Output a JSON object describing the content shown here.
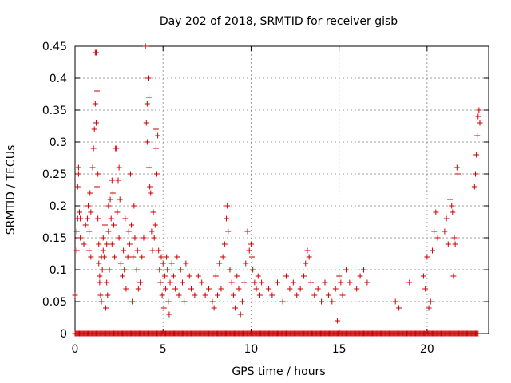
{
  "chart_data": {
    "type": "scatter",
    "title": "Day 202 of 2018, SRMTID for receiver gisb",
    "xlabel": "GPS time / hours",
    "ylabel": "SRMTID / TECUs",
    "xlim": [
      0,
      23.5
    ],
    "ylim": [
      0,
      0.45
    ],
    "x_ticks": [
      0,
      5,
      10,
      15,
      20
    ],
    "x_tick_labels": [
      "0",
      "5",
      "10",
      "15",
      "20"
    ],
    "y_ticks": [
      0,
      0.05,
      0.1,
      0.15,
      0.2,
      0.25,
      0.3,
      0.35,
      0.4,
      0.45
    ],
    "y_tick_labels": [
      "0",
      "0.05",
      "0.1",
      "0.15",
      "0.2",
      "0.25",
      "0.3",
      "0.35",
      "0.4",
      "0.45"
    ],
    "grid": true,
    "marker": "+",
    "series_color": "#cc0000",
    "series": [
      {
        "name": "SRMTID",
        "zero_baseline_x": [
          0,
          22.9
        ],
        "points": [
          [
            0.0,
            0.06
          ],
          [
            0.1,
            0.13
          ],
          [
            0.1,
            0.16
          ],
          [
            0.15,
            0.18
          ],
          [
            0.15,
            0.23
          ],
          [
            0.2,
            0.25
          ],
          [
            0.2,
            0.26
          ],
          [
            0.25,
            0.19
          ],
          [
            0.3,
            0.15
          ],
          [
            0.3,
            0.18
          ],
          [
            0.5,
            0.14
          ],
          [
            0.6,
            0.17
          ],
          [
            0.7,
            0.18
          ],
          [
            0.75,
            0.2
          ],
          [
            0.8,
            0.16
          ],
          [
            0.8,
            0.13
          ],
          [
            0.85,
            0.22
          ],
          [
            0.9,
            0.19
          ],
          [
            0.9,
            0.12
          ],
          [
            1.0,
            0.26
          ],
          [
            1.05,
            0.29
          ],
          [
            1.1,
            0.32
          ],
          [
            1.15,
            0.36
          ],
          [
            1.15,
            0.44
          ],
          [
            1.2,
            0.44
          ],
          [
            1.2,
            0.33
          ],
          [
            1.25,
            0.38
          ],
          [
            1.25,
            0.23
          ],
          [
            1.3,
            0.25
          ],
          [
            1.3,
            0.18
          ],
          [
            1.35,
            0.14
          ],
          [
            1.35,
            0.11
          ],
          [
            1.4,
            0.09
          ],
          [
            1.4,
            0.08
          ],
          [
            1.45,
            0.06
          ],
          [
            1.5,
            0.12
          ],
          [
            1.5,
            0.05
          ],
          [
            1.55,
            0.1
          ],
          [
            1.6,
            0.13
          ],
          [
            1.6,
            0.15
          ],
          [
            1.65,
            0.12
          ],
          [
            1.7,
            0.17
          ],
          [
            1.7,
            0.1
          ],
          [
            1.75,
            0.04
          ],
          [
            1.8,
            0.14
          ],
          [
            1.8,
            0.08
          ],
          [
            1.85,
            0.06
          ],
          [
            1.9,
            0.2
          ],
          [
            1.9,
            0.16
          ],
          [
            1.95,
            0.1
          ],
          [
            2.0,
            0.21
          ],
          [
            2.05,
            0.18
          ],
          [
            2.1,
            0.24
          ],
          [
            2.1,
            0.14
          ],
          [
            2.15,
            0.22
          ],
          [
            2.2,
            0.17
          ],
          [
            2.25,
            0.12
          ],
          [
            2.3,
            0.29
          ],
          [
            2.35,
            0.29
          ],
          [
            2.4,
            0.19
          ],
          [
            2.45,
            0.24
          ],
          [
            2.5,
            0.26
          ],
          [
            2.5,
            0.15
          ],
          [
            2.55,
            0.21
          ],
          [
            2.6,
            0.11
          ],
          [
            2.7,
            0.09
          ],
          [
            2.75,
            0.13
          ],
          [
            2.8,
            0.1
          ],
          [
            2.85,
            0.18
          ],
          [
            2.9,
            0.07
          ],
          [
            3.0,
            0.12
          ],
          [
            3.05,
            0.16
          ],
          [
            3.1,
            0.14
          ],
          [
            3.15,
            0.25
          ],
          [
            3.2,
            0.17
          ],
          [
            3.25,
            0.05
          ],
          [
            3.3,
            0.12
          ],
          [
            3.35,
            0.2
          ],
          [
            3.4,
            0.15
          ],
          [
            3.5,
            0.1
          ],
          [
            3.55,
            0.13
          ],
          [
            3.6,
            0.07
          ],
          [
            3.7,
            0.08
          ],
          [
            3.8,
            0.12
          ],
          [
            3.9,
            0.15
          ],
          [
            4.0,
            0.45
          ],
          [
            4.05,
            0.33
          ],
          [
            4.1,
            0.36
          ],
          [
            4.1,
            0.3
          ],
          [
            4.15,
            0.4
          ],
          [
            4.2,
            0.37
          ],
          [
            4.2,
            0.26
          ],
          [
            4.25,
            0.23
          ],
          [
            4.3,
            0.22
          ],
          [
            4.35,
            0.16
          ],
          [
            4.4,
            0.13
          ],
          [
            4.45,
            0.19
          ],
          [
            4.5,
            0.15
          ],
          [
            4.55,
            0.17
          ],
          [
            4.6,
            0.32
          ],
          [
            4.6,
            0.29
          ],
          [
            4.65,
            0.25
          ],
          [
            4.7,
            0.31
          ],
          [
            4.75,
            0.13
          ],
          [
            4.8,
            0.1
          ],
          [
            4.85,
            0.08
          ],
          [
            4.9,
            0.12
          ],
          [
            4.95,
            0.06
          ],
          [
            5.0,
            0.11
          ],
          [
            5.05,
            0.04
          ],
          [
            5.1,
            0.09
          ],
          [
            5.15,
            0.07
          ],
          [
            5.2,
            0.12
          ],
          [
            5.25,
            0.1
          ],
          [
            5.3,
            0.05
          ],
          [
            5.35,
            0.03
          ],
          [
            5.4,
            0.08
          ],
          [
            5.5,
            0.11
          ],
          [
            5.6,
            0.09
          ],
          [
            5.7,
            0.07
          ],
          [
            5.8,
            0.12
          ],
          [
            5.9,
            0.06
          ],
          [
            6.0,
            0.1
          ],
          [
            6.1,
            0.08
          ],
          [
            6.2,
            0.05
          ],
          [
            6.3,
            0.11
          ],
          [
            6.5,
            0.09
          ],
          [
            6.6,
            0.07
          ],
          [
            6.8,
            0.06
          ],
          [
            7.0,
            0.09
          ],
          [
            7.2,
            0.08
          ],
          [
            7.4,
            0.06
          ],
          [
            7.6,
            0.07
          ],
          [
            7.8,
            0.05
          ],
          [
            7.9,
            0.04
          ],
          [
            8.0,
            0.09
          ],
          [
            8.1,
            0.06
          ],
          [
            8.2,
            0.11
          ],
          [
            8.3,
            0.07
          ],
          [
            8.4,
            0.12
          ],
          [
            8.5,
            0.14
          ],
          [
            8.6,
            0.18
          ],
          [
            8.65,
            0.2
          ],
          [
            8.7,
            0.16
          ],
          [
            8.8,
            0.1
          ],
          [
            8.9,
            0.08
          ],
          [
            9.0,
            0.06
          ],
          [
            9.1,
            0.04
          ],
          [
            9.2,
            0.09
          ],
          [
            9.3,
            0.07
          ],
          [
            9.4,
            0.03
          ],
          [
            9.5,
            0.05
          ],
          [
            9.6,
            0.08
          ],
          [
            9.7,
            0.11
          ],
          [
            9.8,
            0.16
          ],
          [
            9.9,
            0.13
          ],
          [
            10.0,
            0.14
          ],
          [
            10.05,
            0.12
          ],
          [
            10.1,
            0.1
          ],
          [
            10.2,
            0.08
          ],
          [
            10.3,
            0.07
          ],
          [
            10.4,
            0.09
          ],
          [
            10.5,
            0.06
          ],
          [
            10.6,
            0.08
          ],
          [
            11.0,
            0.07
          ],
          [
            11.2,
            0.06
          ],
          [
            11.5,
            0.08
          ],
          [
            11.8,
            0.05
          ],
          [
            12.0,
            0.09
          ],
          [
            12.2,
            0.07
          ],
          [
            12.4,
            0.08
          ],
          [
            12.6,
            0.06
          ],
          [
            12.8,
            0.07
          ],
          [
            13.0,
            0.09
          ],
          [
            13.1,
            0.11
          ],
          [
            13.2,
            0.13
          ],
          [
            13.3,
            0.12
          ],
          [
            13.4,
            0.08
          ],
          [
            13.6,
            0.06
          ],
          [
            13.8,
            0.07
          ],
          [
            14.0,
            0.05
          ],
          [
            14.2,
            0.08
          ],
          [
            14.4,
            0.06
          ],
          [
            14.6,
            0.05
          ],
          [
            14.8,
            0.07
          ],
          [
            14.9,
            0.02
          ],
          [
            15.0,
            0.09
          ],
          [
            15.1,
            0.08
          ],
          [
            15.2,
            0.06
          ],
          [
            15.4,
            0.1
          ],
          [
            15.6,
            0.08
          ],
          [
            16.0,
            0.07
          ],
          [
            16.2,
            0.09
          ],
          [
            16.4,
            0.1
          ],
          [
            16.6,
            0.08
          ],
          [
            18.2,
            0.05
          ],
          [
            18.4,
            0.04
          ],
          [
            19.0,
            0.08
          ],
          [
            19.8,
            0.09
          ],
          [
            19.9,
            0.07
          ],
          [
            20.0,
            0.12
          ],
          [
            20.1,
            0.04
          ],
          [
            20.2,
            0.05
          ],
          [
            20.3,
            0.13
          ],
          [
            20.4,
            0.16
          ],
          [
            20.5,
            0.19
          ],
          [
            20.6,
            0.15
          ],
          [
            21.0,
            0.16
          ],
          [
            21.1,
            0.18
          ],
          [
            21.2,
            0.14
          ],
          [
            21.3,
            0.21
          ],
          [
            21.4,
            0.2
          ],
          [
            21.45,
            0.19
          ],
          [
            21.5,
            0.09
          ],
          [
            21.55,
            0.15
          ],
          [
            21.6,
            0.14
          ],
          [
            21.7,
            0.26
          ],
          [
            21.75,
            0.25
          ],
          [
            22.7,
            0.23
          ],
          [
            22.75,
            0.25
          ],
          [
            22.8,
            0.28
          ],
          [
            22.85,
            0.31
          ],
          [
            22.9,
            0.34
          ],
          [
            22.95,
            0.35
          ],
          [
            23.0,
            0.33
          ]
        ]
      }
    ]
  }
}
